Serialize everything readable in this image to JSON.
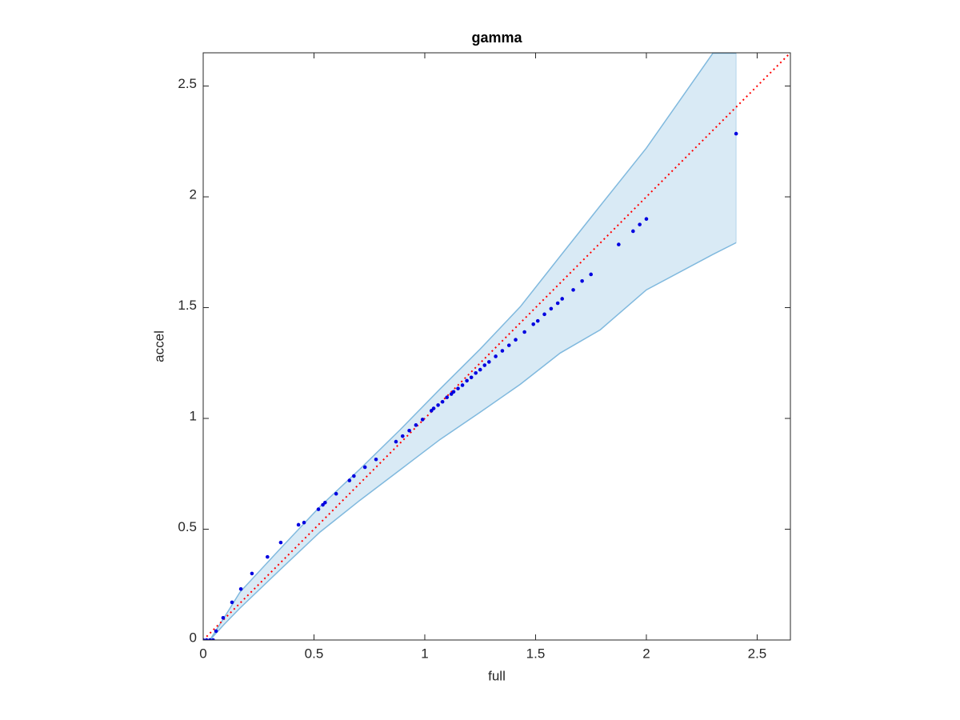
{
  "chart_data": {
    "type": "scatter",
    "title": "gamma",
    "xlabel": "full",
    "ylabel": "accel",
    "xlim": [
      0,
      2.65
    ],
    "ylim": [
      0,
      2.65
    ],
    "xticks": [
      0,
      0.5,
      1,
      1.5,
      2,
      2.5
    ],
    "yticks": [
      0,
      0.5,
      1,
      1.5,
      2,
      2.5
    ],
    "band": {
      "color": "#80b9de",
      "x": [
        0.03,
        0.094,
        0.166,
        0.347,
        0.527,
        0.708,
        0.889,
        1.069,
        1.25,
        1.431,
        1.611,
        1.792,
        2.0,
        2.3,
        2.405
      ],
      "lower": [
        0,
        0.07,
        0.144,
        0.317,
        0.487,
        0.631,
        0.768,
        0.905,
        1.028,
        1.154,
        1.295,
        1.4,
        1.58,
        1.74,
        1.793
      ],
      "upper": [
        0,
        0.1,
        0.216,
        0.411,
        0.602,
        0.772,
        0.949,
        1.133,
        1.313,
        1.504,
        1.732,
        1.96,
        2.22,
        2.648,
        2.648
      ]
    },
    "reference_line": {
      "color": "#ff0000",
      "x": [
        0,
        2.65
      ],
      "y": [
        0,
        2.65
      ]
    },
    "points": {
      "color": "#0000e0",
      "x": [
        0.0,
        0.015,
        0.03,
        0.045,
        0.058,
        0.09,
        0.13,
        0.17,
        0.22,
        0.29,
        0.35,
        0.43,
        0.455,
        0.52,
        0.54,
        0.55,
        0.6,
        0.66,
        0.68,
        0.73,
        0.78,
        0.87,
        0.9,
        0.93,
        0.96,
        0.99,
        1.03,
        1.04,
        1.06,
        1.08,
        1.1,
        1.12,
        1.13,
        1.15,
        1.17,
        1.19,
        1.21,
        1.23,
        1.25,
        1.27,
        1.29,
        1.32,
        1.35,
        1.38,
        1.41,
        1.45,
        1.49,
        1.51,
        1.54,
        1.57,
        1.6,
        1.62,
        1.67,
        1.71,
        1.75,
        1.875,
        1.94,
        1.97,
        2.0,
        2.405
      ],
      "y": [
        0.0,
        0.0,
        0.0,
        0.0,
        0.04,
        0.1,
        0.17,
        0.23,
        0.3,
        0.375,
        0.44,
        0.52,
        0.53,
        0.59,
        0.61,
        0.62,
        0.66,
        0.72,
        0.74,
        0.78,
        0.815,
        0.895,
        0.92,
        0.945,
        0.97,
        0.995,
        1.035,
        1.045,
        1.06,
        1.075,
        1.095,
        1.11,
        1.12,
        1.135,
        1.15,
        1.17,
        1.185,
        1.205,
        1.22,
        1.24,
        1.255,
        1.28,
        1.305,
        1.33,
        1.355,
        1.39,
        1.425,
        1.44,
        1.47,
        1.495,
        1.52,
        1.54,
        1.58,
        1.62,
        1.65,
        1.785,
        1.845,
        1.875,
        1.9,
        2.285
      ]
    }
  }
}
